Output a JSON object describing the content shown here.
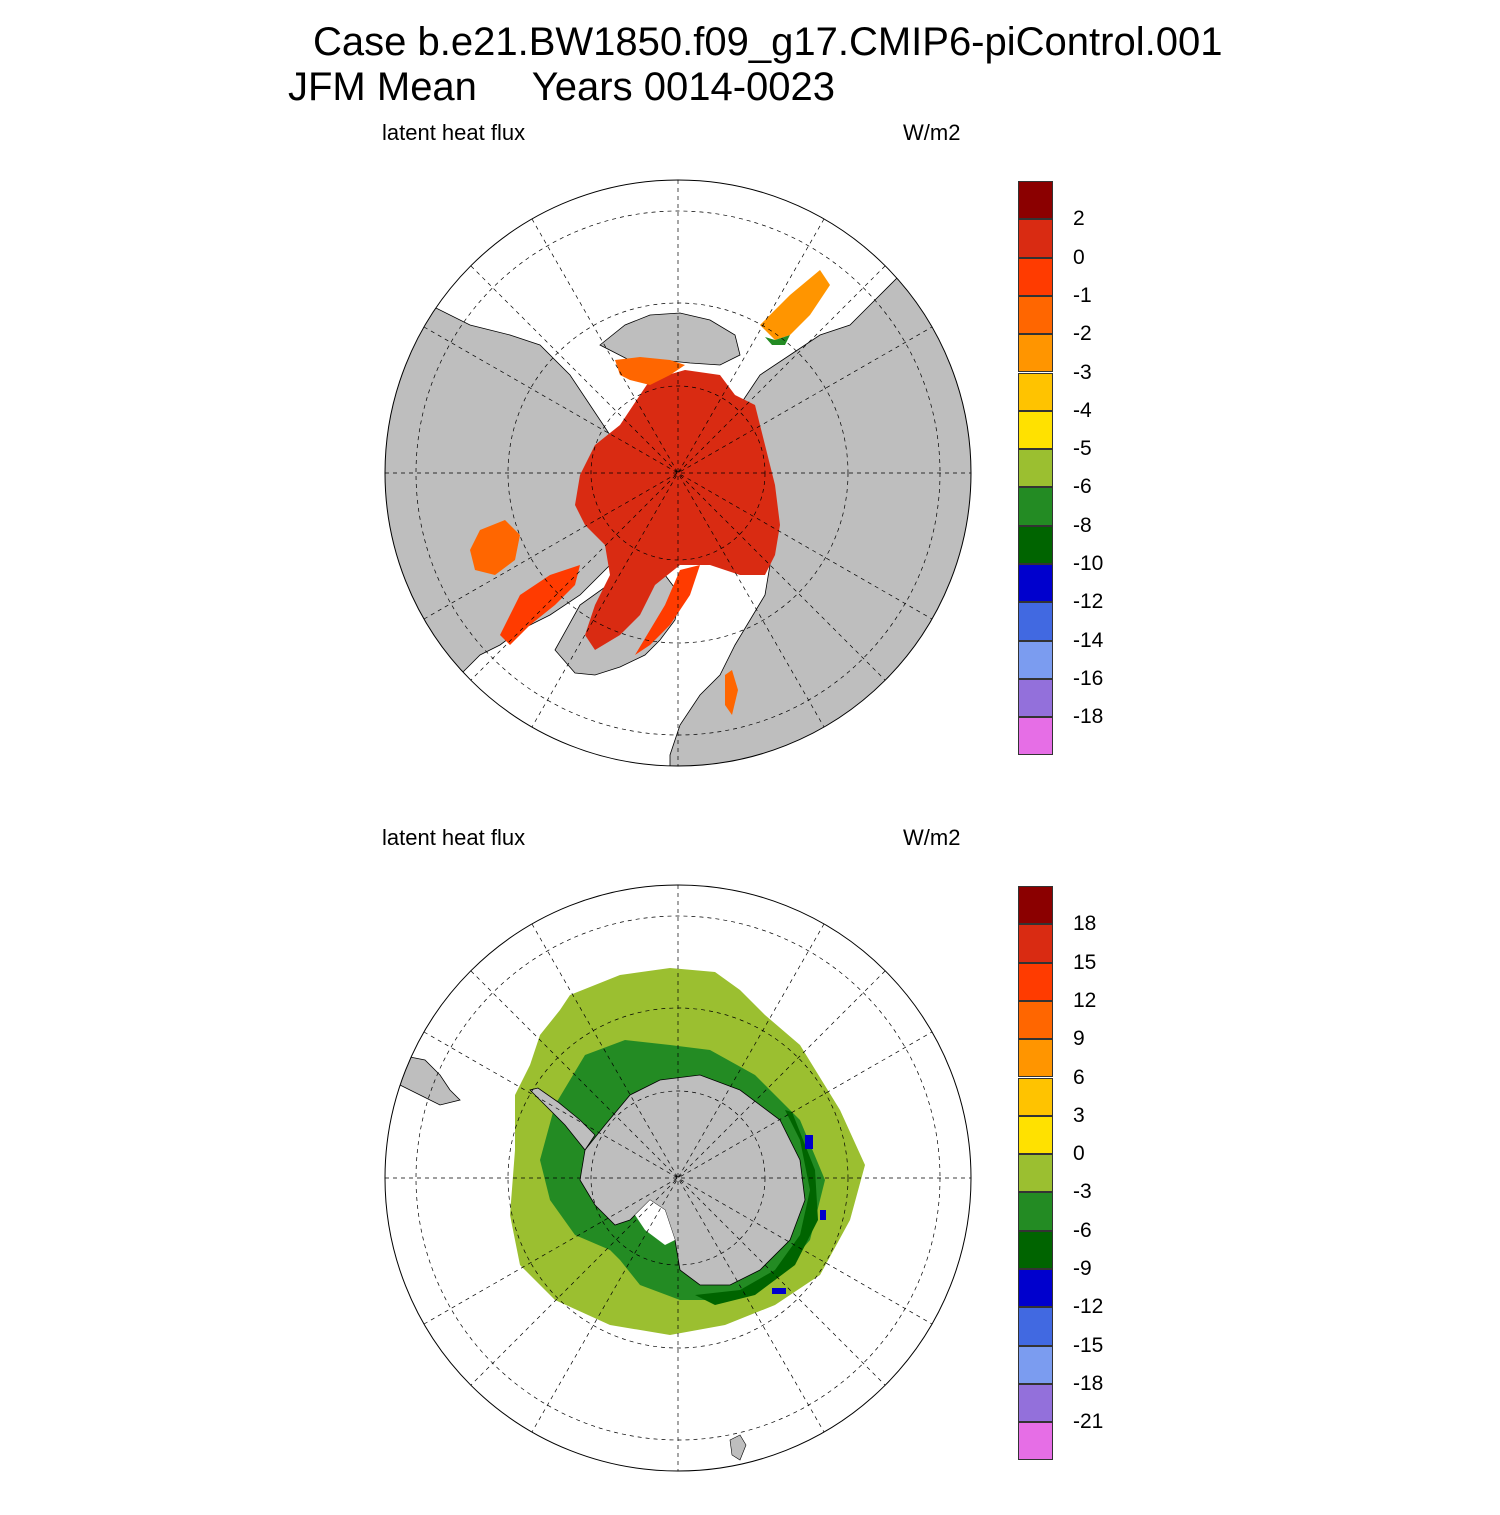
{
  "title": {
    "line1": "Case b.e21.BW1850.f09_g17.CMIP6-piControl.001",
    "line2": "JFM Mean     Years 0014-0023"
  },
  "panels": {
    "north": {
      "variable": "latent heat flux",
      "units": "W/m2",
      "hemisphere": "Northern Hemisphere polar stereographic",
      "colorbar": {
        "colors": [
          "#8b0000",
          "#d92b12",
          "#ff3b00",
          "#ff6600",
          "#ff9500",
          "#ffc300",
          "#ffe100",
          "#9bbf30",
          "#238b23",
          "#006400",
          "#0000cd",
          "#4169e1",
          "#7b9cf0",
          "#9370db",
          "#e66ee6"
        ],
        "labels": [
          "2",
          "0",
          "-1",
          "-2",
          "-3",
          "-4",
          "-5",
          "-6",
          "-8",
          "-10",
          "-12",
          "-14",
          "-16",
          "-18"
        ]
      }
    },
    "south": {
      "variable": "latent heat flux",
      "units": "W/m2",
      "hemisphere": "Southern Hemisphere polar stereographic",
      "colorbar": {
        "colors": [
          "#8b0000",
          "#d92b12",
          "#ff3b00",
          "#ff6600",
          "#ff9500",
          "#ffc300",
          "#ffe100",
          "#9bbf30",
          "#238b23",
          "#006400",
          "#0000cd",
          "#4169e1",
          "#7b9cf0",
          "#9370db",
          "#e66ee6"
        ],
        "labels": [
          "18",
          "15",
          "12",
          "9",
          "6",
          "3",
          "0",
          "-3",
          "-6",
          "-9",
          "-12",
          "-15",
          "-18",
          "-21"
        ]
      }
    }
  },
  "style": {
    "land_color": "#bebebe",
    "ocean_color": "#ffffff"
  }
}
